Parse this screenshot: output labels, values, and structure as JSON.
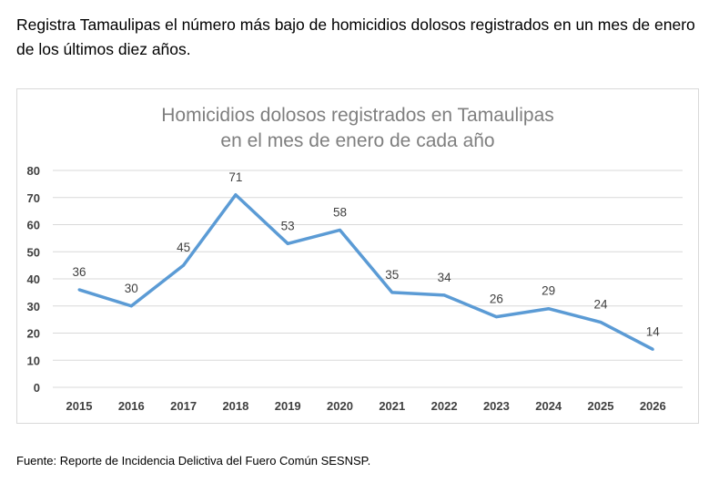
{
  "headline": "Registra Tamaulipas el número más bajo de homicidios dolosos registrados en un mes de enero de los últimos diez años.",
  "source": "Fuente: Reporte de Incidencia Delictiva del Fuero Común SESNSP.",
  "chart_data": {
    "type": "line",
    "title_lines": [
      "Homicidios dolosos registrados en Tamaulipas",
      "en el mes de enero de cada año"
    ],
    "categories": [
      "2015",
      "2016",
      "2017",
      "2018",
      "2019",
      "2020",
      "2021",
      "2022",
      "2023",
      "2024",
      "2025",
      "2026"
    ],
    "series": [
      {
        "values": [
          36,
          30,
          45,
          71,
          53,
          58,
          35,
          34,
          26,
          29,
          24,
          14
        ],
        "color": "#5b9bd5"
      }
    ],
    "yticks": [
      0,
      10,
      20,
      30,
      40,
      50,
      60,
      70,
      80
    ],
    "ylim": [
      0,
      80
    ],
    "grid": true,
    "data_labels": true,
    "xlabel": "",
    "ylabel": ""
  }
}
